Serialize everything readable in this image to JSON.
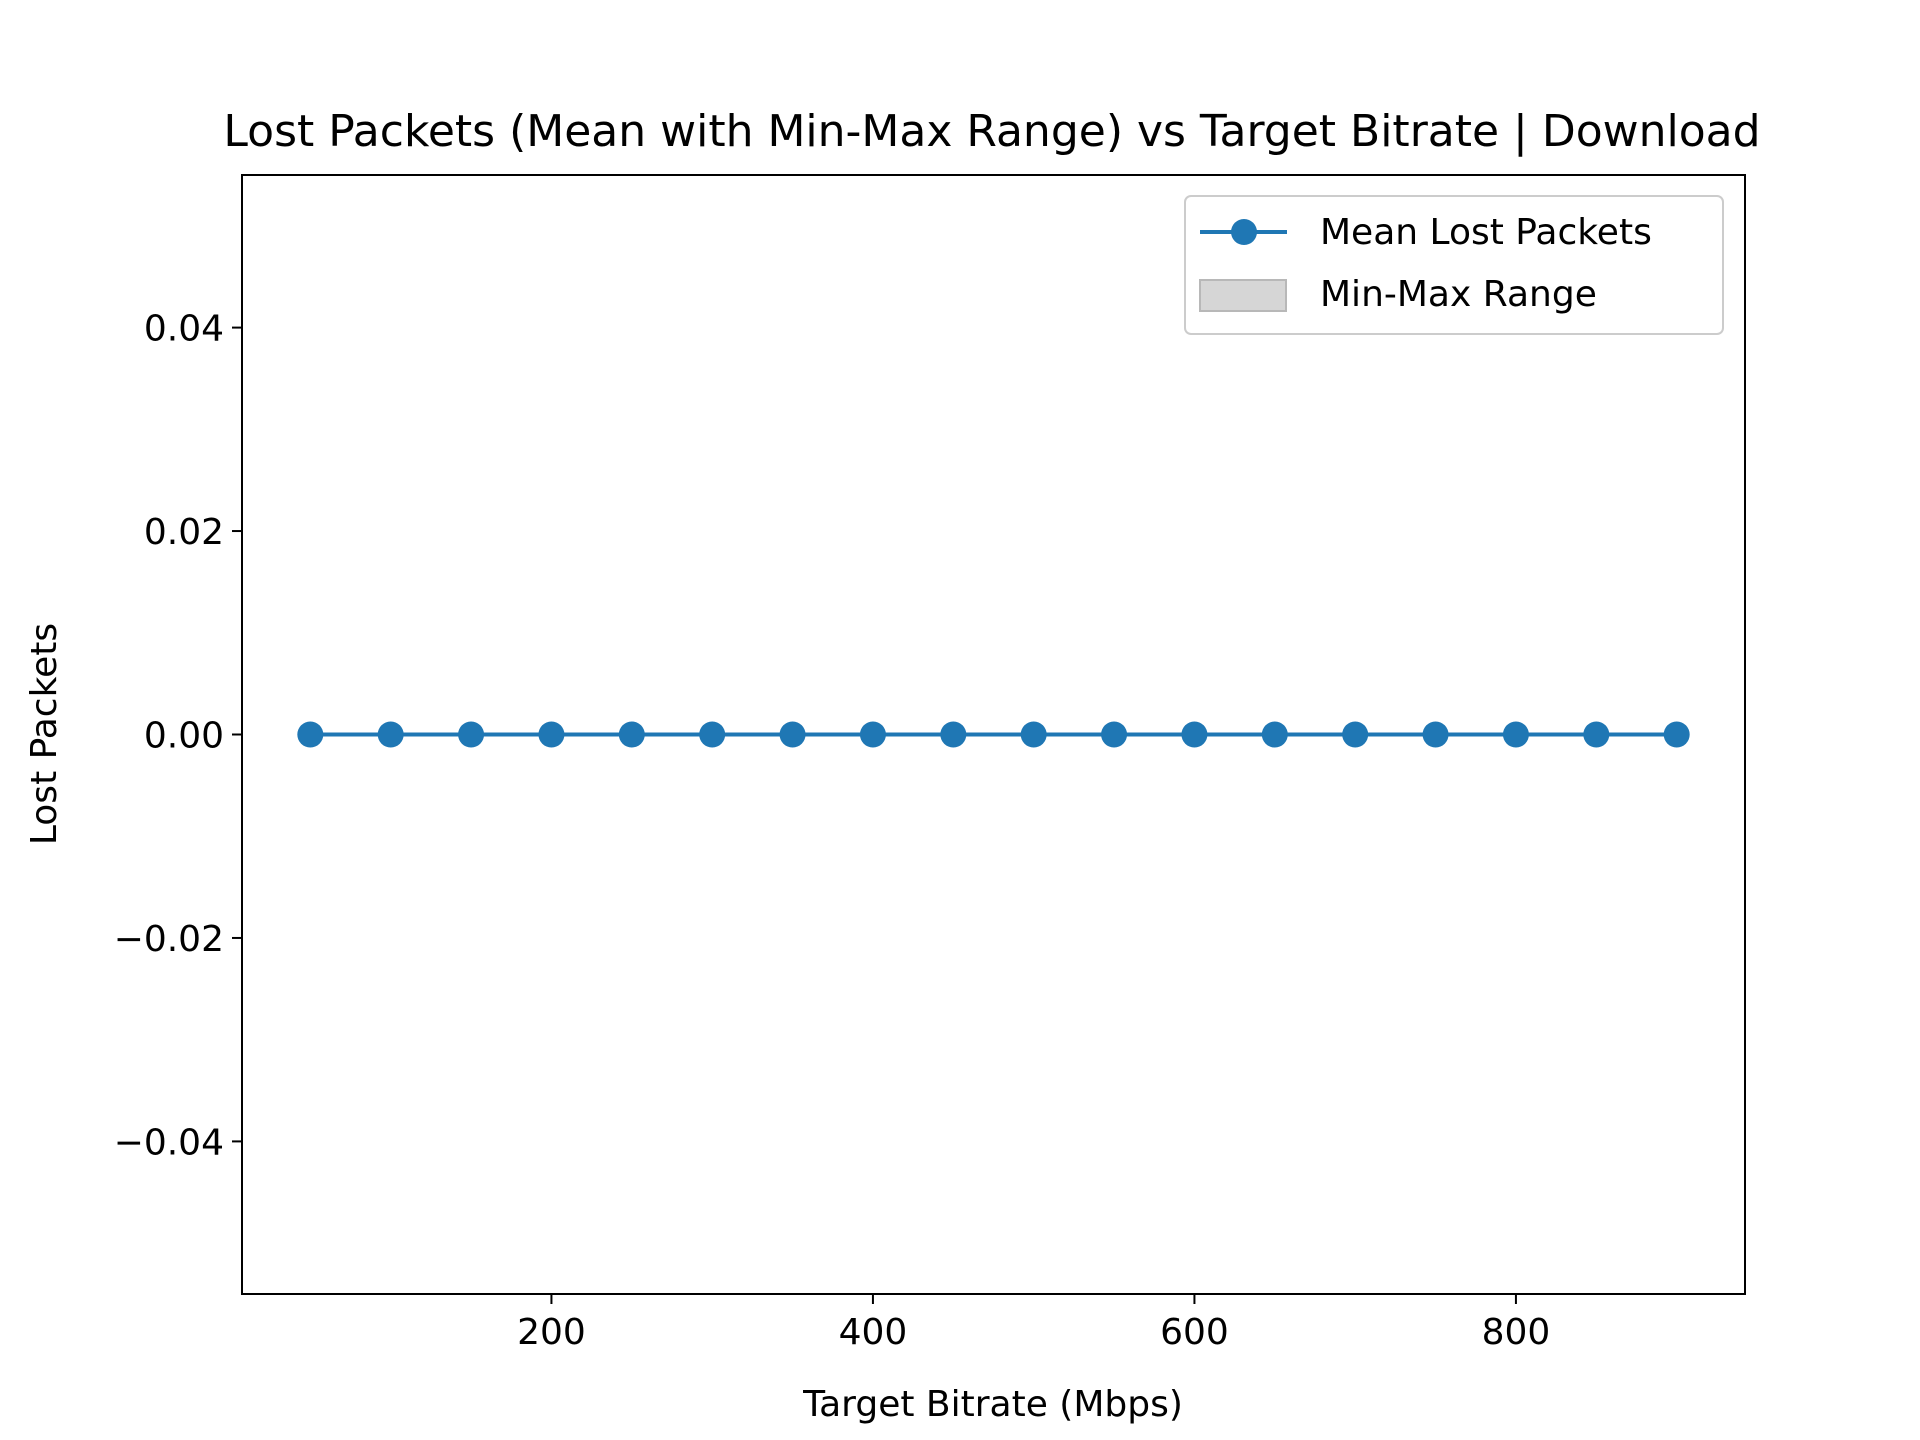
{
  "chart_data": {
    "type": "line",
    "title": "Lost Packets (Mean with Min-Max Range) vs Target Bitrate | Download",
    "xlabel": "Target Bitrate (Mbps)",
    "ylabel": "Lost Packets",
    "xlim": [
      7.5,
      942.5
    ],
    "ylim": [
      -0.055,
      0.055
    ],
    "xticks": [
      200,
      400,
      600,
      800
    ],
    "xtick_labels": [
      "200",
      "400",
      "600",
      "800"
    ],
    "yticks": [
      -0.04,
      -0.02,
      0.0,
      0.02,
      0.04
    ],
    "ytick_labels": [
      "−0.04",
      "−0.02",
      "0.00",
      "0.02",
      "0.04"
    ],
    "grid": false,
    "legend_position": "top-right",
    "x": [
      50,
      100,
      150,
      200,
      250,
      300,
      350,
      400,
      450,
      500,
      550,
      600,
      650,
      700,
      750,
      800,
      850,
      900
    ],
    "series": [
      {
        "name": "Mean Lost Packets",
        "color": "#1f77b4",
        "marker": "circle",
        "values": [
          0,
          0,
          0,
          0,
          0,
          0,
          0,
          0,
          0,
          0,
          0,
          0,
          0,
          0,
          0,
          0,
          0,
          0
        ]
      }
    ],
    "range_band": {
      "name": "Min-Max Range",
      "color": "#d6d6d6",
      "min": [
        0,
        0,
        0,
        0,
        0,
        0,
        0,
        0,
        0,
        0,
        0,
        0,
        0,
        0,
        0,
        0,
        0,
        0
      ],
      "max": [
        0,
        0,
        0,
        0,
        0,
        0,
        0,
        0,
        0,
        0,
        0,
        0,
        0,
        0,
        0,
        0,
        0,
        0
      ]
    }
  }
}
